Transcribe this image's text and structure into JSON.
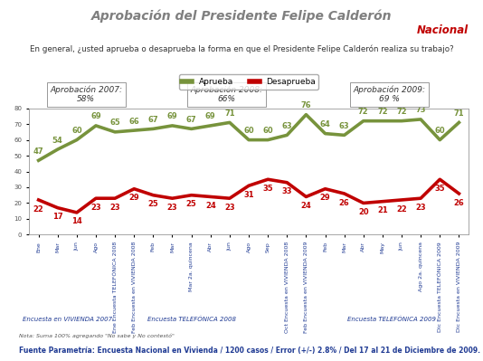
{
  "chart_data": {
    "type": "line",
    "title": "Aprobación del Presidente Felipe Calderón",
    "subtitle": "Nacional",
    "question": "En general, ¿usted aprueba o desaprueba la forma en que el Presidente Felipe Calderón realiza su trabajo?",
    "categories": [
      "Ene",
      "Mar",
      "Jun",
      "Ago",
      "Ene Encuesta TELEFÓNICA 2008",
      "Feb Encuesta en VIVIENDA 2008",
      "Feb",
      "Mar",
      "Mar 2a. quincena",
      "Abr",
      "Jun",
      "Ago",
      "Sep",
      "Oct Encuesta en VIVIENDA 2008",
      "Feb Encuesta en VIVIENDA 2009",
      "Feb",
      "Mar",
      "Abr",
      "May",
      "Jun",
      "Ago 2a. quincena",
      "Dic Encuesta TELEFÓNICA 2009",
      "Dic Encuesta en VIVIENDA 2009"
    ],
    "series": [
      {
        "name": "Aprueba",
        "color": "#77933C",
        "values": [
          47,
          54,
          60,
          69,
          65,
          66,
          67,
          69,
          67,
          69,
          71,
          60,
          60,
          63,
          76,
          64,
          63,
          72,
          72,
          72,
          73,
          60,
          71
        ]
      },
      {
        "name": "Desaprueba",
        "color": "#C00000",
        "values": [
          22,
          17,
          14,
          23,
          23,
          29,
          25,
          23,
          25,
          24,
          23,
          31,
          35,
          33,
          24,
          29,
          26,
          20,
          21,
          22,
          23,
          35,
          26
        ]
      }
    ],
    "ylim": [
      0,
      80
    ],
    "yticks": [
      0,
      10,
      20,
      30,
      40,
      50,
      60,
      70,
      80
    ],
    "data_labels": true,
    "legend": "upper center",
    "annotations": [
      "Aprobación 2007:\n58%",
      "Aprobación 2008:\n66%",
      "Aprobación 2009:\n69 %"
    ],
    "groups": [
      "Encuesta en VIVIENDA 2007",
      "Encuesta TELEFÓNICA 2008",
      "Encuesta TELEFÓNICA 2009"
    ],
    "note": "Nota: Suma 100% agregando \"No sabe y No contestó\"",
    "source": "Fuente Parametría: Encuesta Nacional en Vivienda / 1200 casos / Error (+/-) 2.8% / Del 17 al 21 de Diciembre de 2009."
  }
}
